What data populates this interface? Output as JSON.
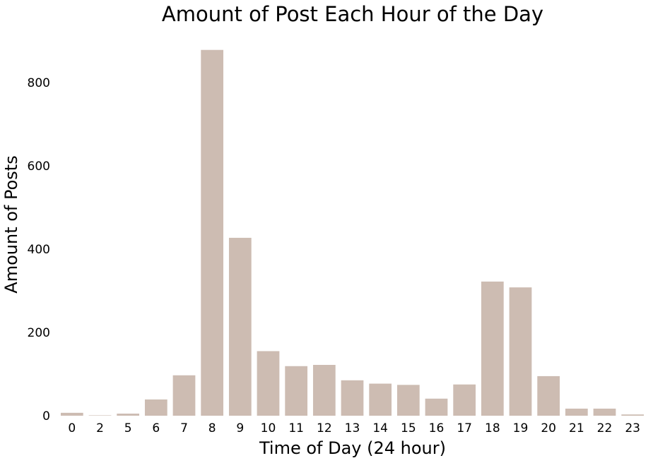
{
  "chart_data": {
    "type": "bar",
    "title": "Amount of Post Each Hour of the Day",
    "xlabel": "Time of Day (24 hour)",
    "ylabel": "Amount of Posts",
    "categories": [
      "0",
      "2",
      "5",
      "6",
      "7",
      "8",
      "9",
      "10",
      "11",
      "12",
      "13",
      "14",
      "15",
      "16",
      "17",
      "18",
      "19",
      "20",
      "21",
      "22",
      "23"
    ],
    "values": [
      7,
      1,
      5,
      39,
      97,
      878,
      427,
      155,
      119,
      122,
      85,
      77,
      74,
      41,
      75,
      322,
      308,
      95,
      17,
      17,
      3
    ],
    "ylim": [
      0,
      900
    ],
    "yticks": [
      0,
      200,
      400,
      600,
      800
    ],
    "bar_color": "#cdbcb2",
    "grid": false
  }
}
